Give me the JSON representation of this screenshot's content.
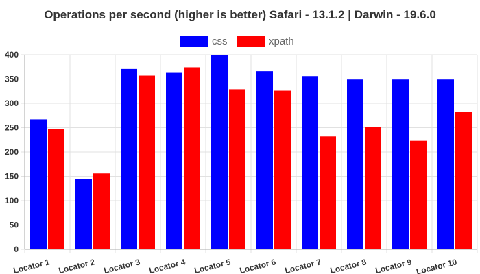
{
  "chart_data": {
    "type": "bar",
    "title": "Operations per second (higher is better) Safari - 13.1.2 | Darwin - 19.6.0",
    "xlabel": "",
    "ylabel": "",
    "categories": [
      "Locator 1",
      "Locator 2",
      "Locator 3",
      "Locator 4",
      "Locator 5",
      "Locator 6",
      "Locator 7",
      "Locator 8",
      "Locator 9",
      "Locator 10"
    ],
    "series": [
      {
        "name": "css",
        "color": "#0000ff",
        "values": [
          267,
          145,
          372,
          364,
          399,
          366,
          356,
          349,
          349,
          349
        ]
      },
      {
        "name": "xpath",
        "color": "#ff0000",
        "values": [
          247,
          156,
          357,
          374,
          329,
          326,
          232,
          251,
          223,
          282
        ]
      }
    ],
    "ylim": [
      0,
      400
    ],
    "yticks": [
      "0",
      "50",
      "100",
      "150",
      "200",
      "250",
      "300",
      "350",
      "400"
    ],
    "grid": true,
    "legend_position": "top-center"
  }
}
